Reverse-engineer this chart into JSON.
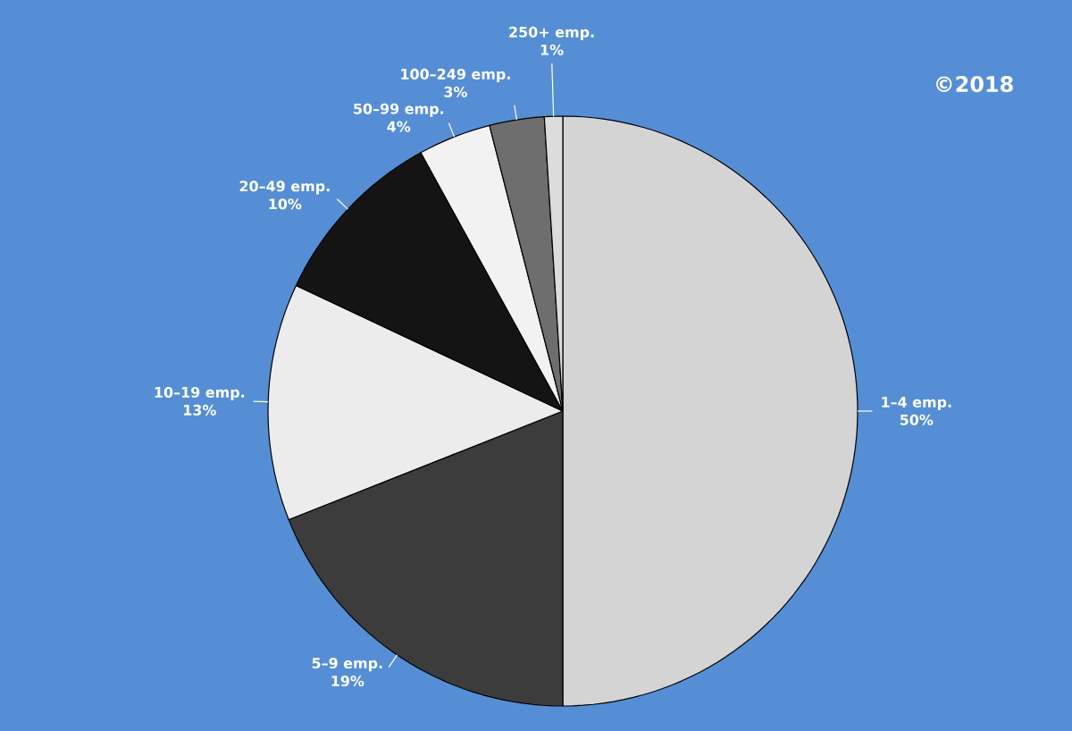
{
  "chart_data": {
    "type": "pie",
    "categories": [
      "1–4 emp.",
      "5–9 emp.",
      "10–19 emp.",
      "20–49 emp.",
      "50–99 emp.",
      "100–249 emp.",
      "250+ emp."
    ],
    "values": [
      50,
      19,
      13,
      10,
      4,
      3,
      1
    ],
    "value_labels": [
      "50%",
      "19%",
      "13%",
      "10%",
      "4%",
      "3%",
      "1%"
    ],
    "colors": [
      "#d4d4d4",
      "#3c3c3c",
      "#ececec",
      "#141414",
      "#f2f2f2",
      "#6e6e6e",
      "#dcdcdc"
    ],
    "annotations": [
      "©2018"
    ]
  }
}
